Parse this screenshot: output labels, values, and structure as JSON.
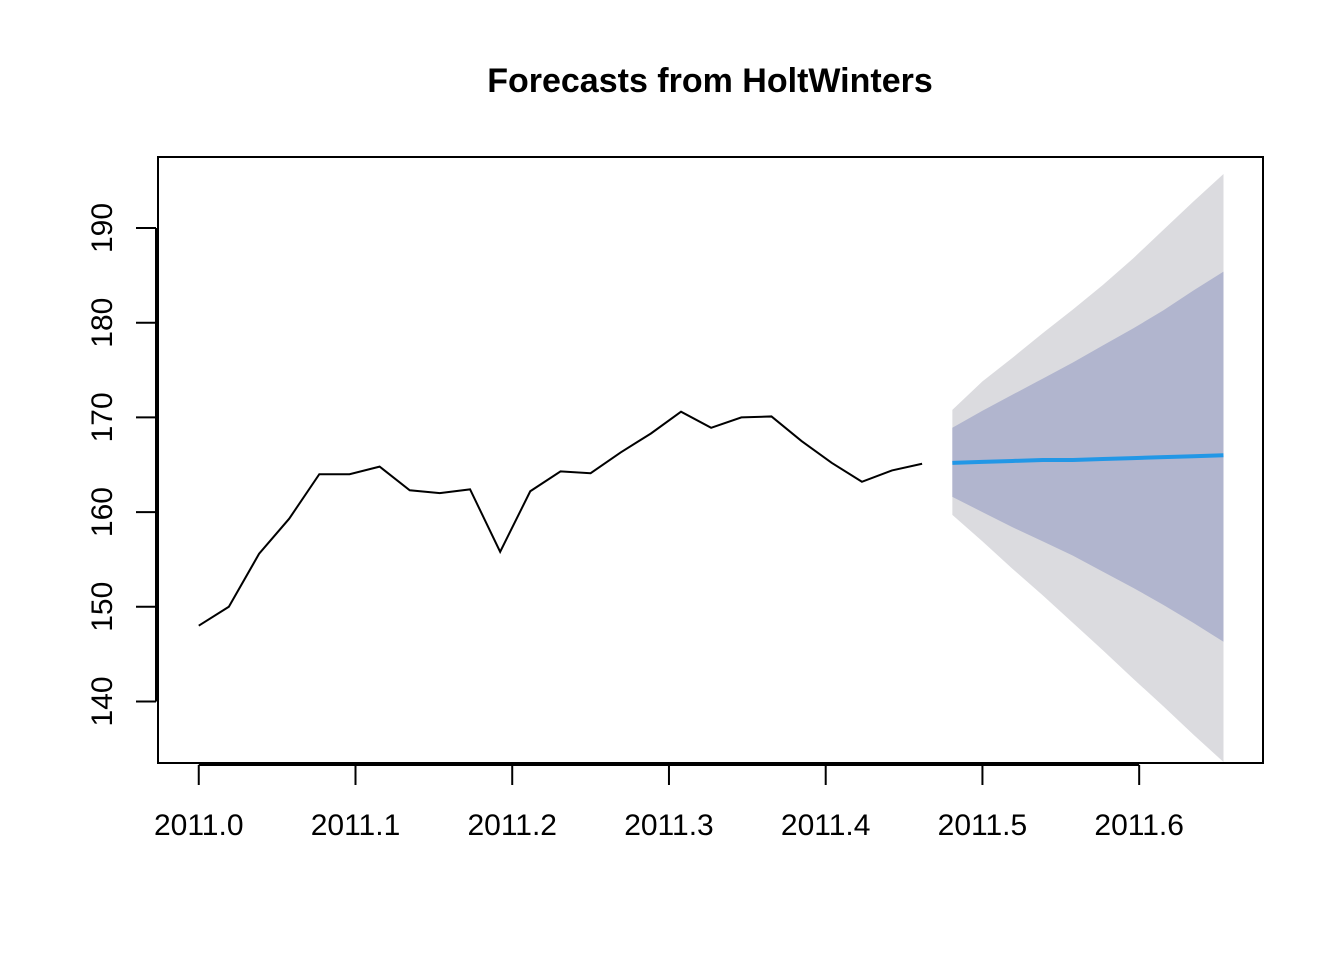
{
  "chart_data": {
    "type": "line",
    "title": "Forecasts from HoltWinters",
    "xlabel": "",
    "ylabel": "",
    "xlim": [
      2010.974,
      2011.679
    ],
    "ylim": [
      133.5,
      197.5
    ],
    "x_ticks": [
      2011.0,
      2011.1,
      2011.2,
      2011.3,
      2011.4,
      2011.5,
      2011.6
    ],
    "x_tick_labels": [
      "2011.0",
      "2011.1",
      "2011.2",
      "2011.3",
      "2011.4",
      "2011.5",
      "2011.6"
    ],
    "y_ticks": [
      140,
      150,
      160,
      170,
      180,
      190
    ],
    "y_tick_labels": [
      "140",
      "150",
      "160",
      "170",
      "180",
      "190"
    ],
    "grid": false,
    "legend": "none",
    "observed": {
      "color": "#000000",
      "x": [
        2011.0,
        2011.0192,
        2011.0385,
        2011.0577,
        2011.0769,
        2011.0962,
        2011.1154,
        2011.1346,
        2011.1538,
        2011.1731,
        2011.1923,
        2011.2115,
        2011.2308,
        2011.25,
        2011.2692,
        2011.2885,
        2011.3077,
        2011.3269,
        2011.3462,
        2011.3654,
        2011.3846,
        2011.4038,
        2011.4231,
        2011.4423,
        2011.4615
      ],
      "y": [
        148.0,
        150.0,
        155.6,
        159.3,
        164.0,
        164.0,
        164.8,
        162.3,
        162.0,
        162.4,
        155.8,
        162.2,
        164.3,
        164.1,
        166.3,
        168.3,
        170.6,
        168.9,
        170.0,
        170.1,
        167.5,
        165.2,
        163.2,
        164.4,
        165.1
      ]
    },
    "forecast": {
      "color": "#2297E6",
      "x": [
        2011.4808,
        2011.5,
        2011.5192,
        2011.5385,
        2011.5577,
        2011.5769,
        2011.5962,
        2011.6154,
        2011.6346,
        2011.6538
      ],
      "mean": [
        165.2,
        165.3,
        165.4,
        165.5,
        165.5,
        165.6,
        165.7,
        165.8,
        165.9,
        166.0
      ],
      "lo80": [
        161.6,
        160.0,
        158.4,
        156.9,
        155.4,
        153.7,
        152.0,
        150.2,
        148.3,
        146.3
      ],
      "hi80": [
        168.9,
        170.7,
        172.4,
        174.1,
        175.8,
        177.6,
        179.4,
        181.3,
        183.4,
        185.4
      ],
      "lo95": [
        159.7,
        156.9,
        154.0,
        151.2,
        148.3,
        145.4,
        142.4,
        139.5,
        136.5,
        133.6
      ],
      "hi95": [
        170.8,
        173.8,
        176.3,
        178.9,
        181.4,
        184.0,
        186.8,
        189.8,
        192.8,
        195.7
      ],
      "band80_color": "#B1B5CE",
      "band95_color": "#DBDBDF"
    }
  }
}
